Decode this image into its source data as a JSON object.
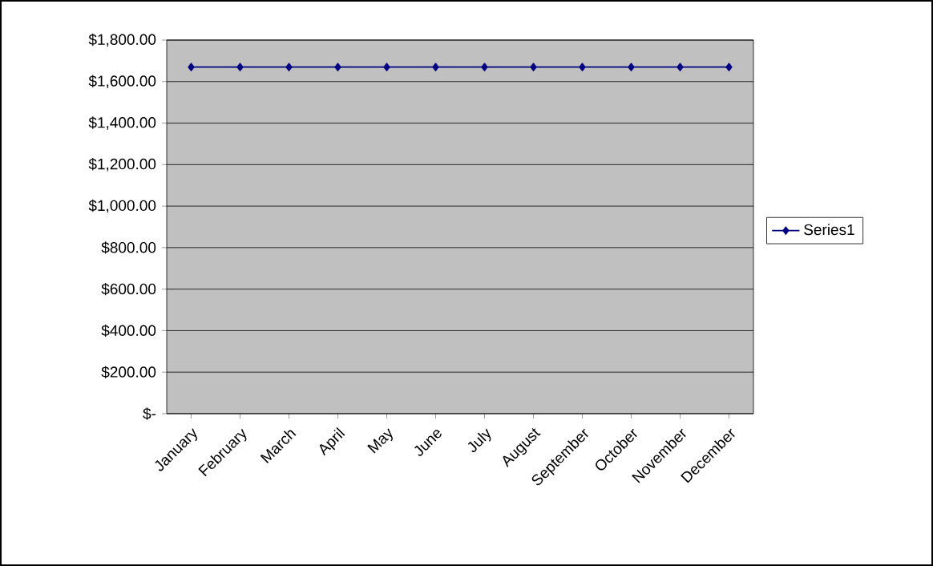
{
  "chart_data": {
    "type": "line",
    "categories": [
      "January",
      "February",
      "March",
      "April",
      "May",
      "June",
      "July",
      "August",
      "September",
      "October",
      "November",
      "December"
    ],
    "series": [
      {
        "name": "Series1",
        "color": "#000080",
        "values": [
          1670,
          1670,
          1670,
          1670,
          1670,
          1670,
          1670,
          1670,
          1670,
          1670,
          1670,
          1670
        ]
      }
    ],
    "ylim": [
      0,
      1800
    ],
    "yticks": [
      {
        "value": 0,
        "label": "$-"
      },
      {
        "value": 200,
        "label": "$200.00"
      },
      {
        "value": 400,
        "label": "$400.00"
      },
      {
        "value": 600,
        "label": "$600.00"
      },
      {
        "value": 800,
        "label": "$800.00"
      },
      {
        "value": 1000,
        "label": "$1,000.00"
      },
      {
        "value": 1200,
        "label": "$1,200.00"
      },
      {
        "value": 1400,
        "label": "$1,400.00"
      },
      {
        "value": 1600,
        "label": "$1,600.00"
      },
      {
        "value": 1800,
        "label": "$1,800.00"
      }
    ],
    "grid": "y",
    "legend": "right",
    "marker": "diamond",
    "line_style": "solid"
  }
}
